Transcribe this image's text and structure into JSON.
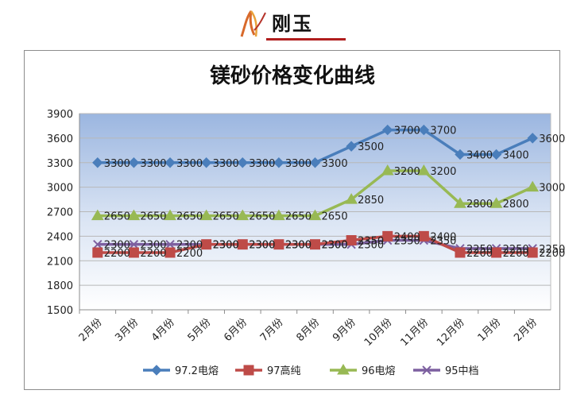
{
  "brand": {
    "text": "刚玉"
  },
  "chart_data": {
    "type": "line",
    "title": "镁砂价格变化曲线",
    "xlabel": "",
    "ylabel": "",
    "categories": [
      "2月份",
      "3月份",
      "4月份",
      "5月份",
      "6月份",
      "7月份",
      "8月份",
      "9月份",
      "10月份",
      "11月份",
      "12月份",
      "1月份",
      "2月份"
    ],
    "ylim": [
      1500,
      3900
    ],
    "yticks": [
      1500,
      1800,
      2100,
      2400,
      2700,
      3000,
      3300,
      3600,
      3900
    ],
    "grid": true,
    "legend_position": "bottom",
    "series": [
      {
        "name": "97.2电熔",
        "color": "#4a7ebb",
        "marker": "diamond",
        "values": [
          3300,
          3300,
          3300,
          3300,
          3300,
          3300,
          3300,
          3500,
          3700,
          3700,
          3400,
          3400,
          3600
        ]
      },
      {
        "name": "97高纯",
        "color": "#be4b48",
        "marker": "square",
        "values": [
          2200,
          2200,
          2200,
          2300,
          2300,
          2300,
          2300,
          2350,
          2400,
          2400,
          2200,
          2200,
          2200
        ]
      },
      {
        "name": "96电熔",
        "color": "#98b954",
        "marker": "triangle",
        "values": [
          2650,
          2650,
          2650,
          2650,
          2650,
          2650,
          2650,
          2850,
          3200,
          3200,
          2800,
          2800,
          3000
        ]
      },
      {
        "name": "95中档",
        "color": "#7d60a0",
        "marker": "x",
        "values": [
          2300,
          2300,
          2300,
          2300,
          2300,
          2300,
          2300,
          2300,
          2350,
          2350,
          2250,
          2250,
          2250
        ]
      }
    ]
  }
}
